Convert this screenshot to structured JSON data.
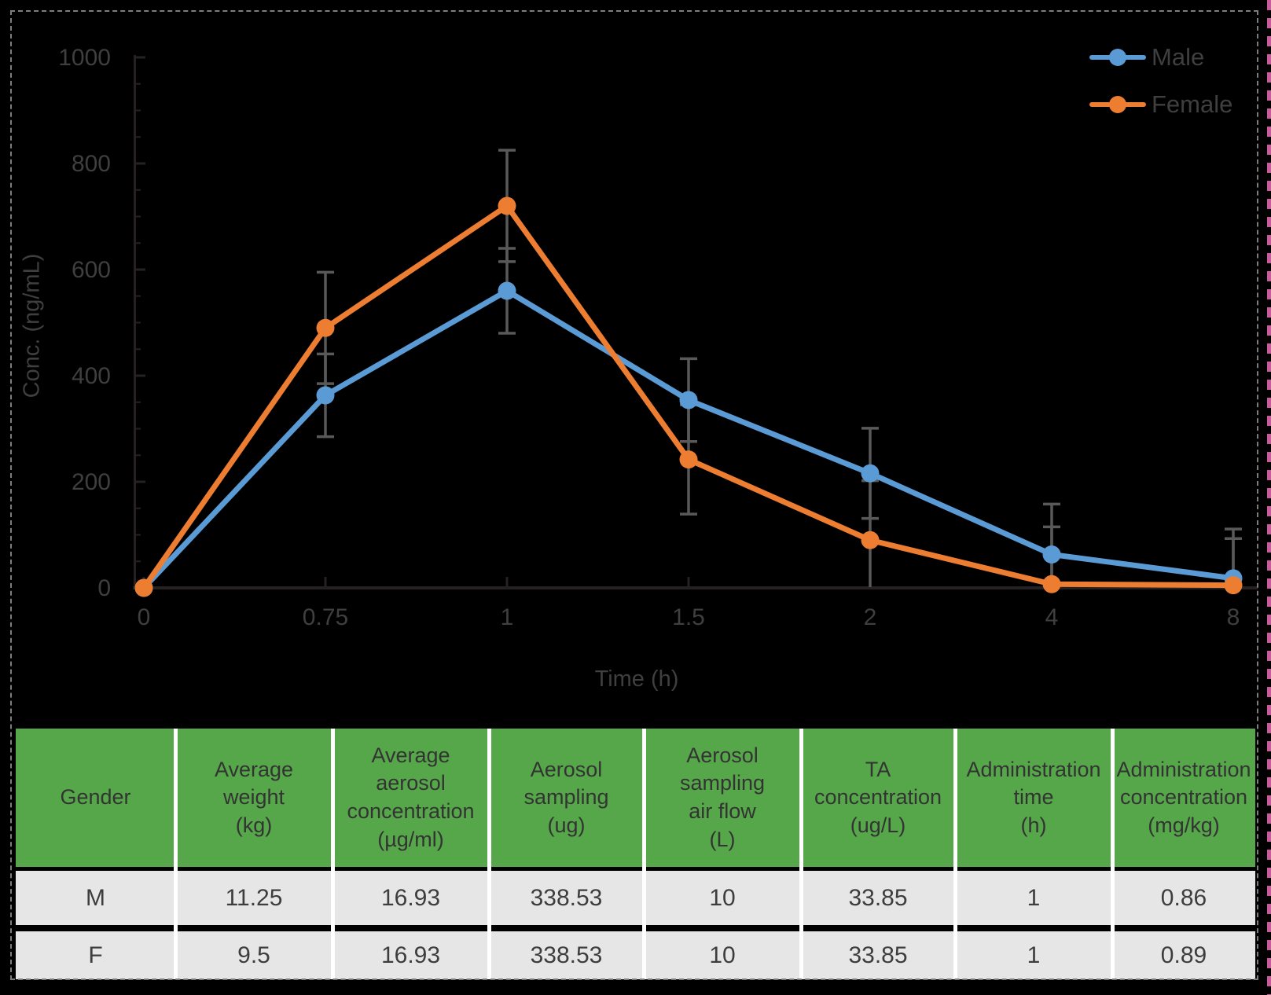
{
  "chart_data": {
    "type": "line",
    "title": "",
    "xlabel": "Time (h)",
    "ylabel": "Conc. (ng/mL)",
    "x_categories": [
      "0",
      "0.75",
      "1",
      "1.5",
      "2",
      "4",
      "8"
    ],
    "x_values": [
      0,
      0.75,
      1,
      1.5,
      2,
      4,
      8
    ],
    "y_ticks": [
      0,
      200,
      400,
      600,
      800,
      1000
    ],
    "y_minor_tick_step": 50,
    "ylim": [
      0,
      1000
    ],
    "grid": false,
    "legend_position": "top-right",
    "series": [
      {
        "name": "Male",
        "color": "#5B9BD5",
        "values": [
          0,
          363,
          560,
          354,
          216,
          63,
          18
        ],
        "error": [
          0,
          78,
          80,
          78,
          85,
          95,
          93
        ]
      },
      {
        "name": "Female",
        "color": "#ED7D31",
        "values": [
          0,
          490,
          720,
          242,
          90,
          7,
          5
        ],
        "error": [
          0,
          105,
          105,
          103,
          112,
          108,
          88
        ]
      }
    ]
  },
  "table": {
    "headers": [
      "Gender",
      "Average\nweight\n(kg)",
      "Average\naerosol\nconcentration\n(µg/ml)",
      "Aerosol\nsampling\n(ug)",
      "Aerosol\nsampling\nair flow\n(L)",
      "TA\nconcentration\n(ug/L)",
      "Administration\ntime\n(h)",
      "Administration\nconcentration\n(mg/kg)"
    ],
    "rows": [
      [
        "M",
        "11.25",
        "16.93",
        "338.53",
        "10",
        "33.85",
        "1",
        "0.86"
      ],
      [
        "F",
        "9.5",
        "16.93",
        "338.53",
        "10",
        "33.85",
        "1",
        "0.89"
      ]
    ]
  },
  "colors": {
    "male": "#5B9BD5",
    "female": "#ED7D31",
    "error_bar": "#595959",
    "axis_line": "#262122",
    "tick_label": "#3f3f3f",
    "table_header_bg": "#56A74A",
    "table_row_bg": "#E7E6E6",
    "table_divider": "#ffffff",
    "frame_dash": "#7d7d7d",
    "edge_dash": "#C75B9B",
    "background": "#000000"
  }
}
